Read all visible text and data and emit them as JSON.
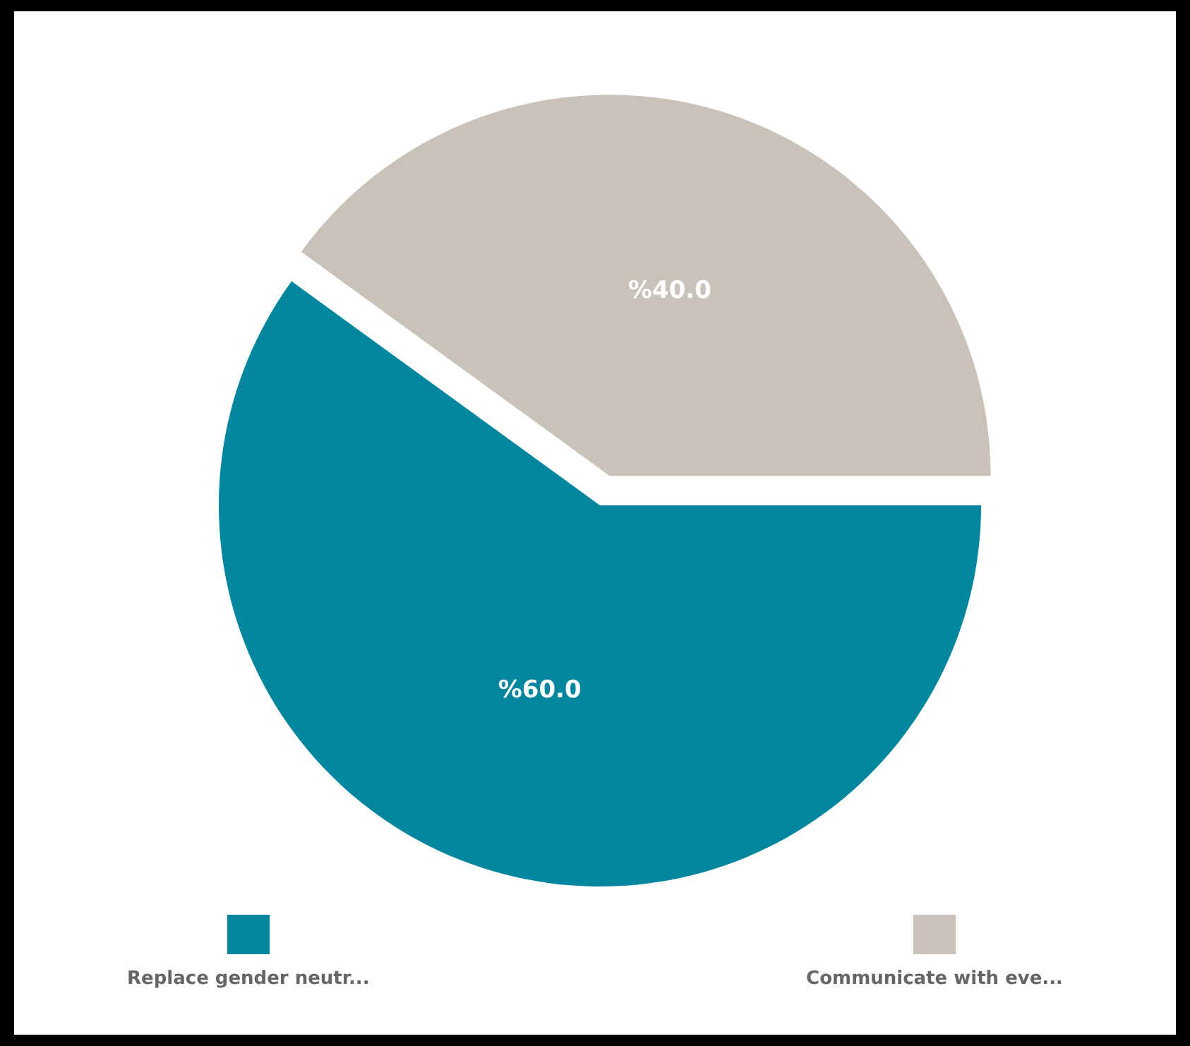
{
  "chart_data": {
    "type": "pie",
    "categories": [
      "Replace gender neutr...",
      "Communicate with eve..."
    ],
    "values": [
      60,
      40
    ],
    "colors": [
      "#00869f",
      "#c8c2b8"
    ],
    "value_labels": [
      "%60.0",
      "%40.0"
    ],
    "legend": "bottom"
  }
}
